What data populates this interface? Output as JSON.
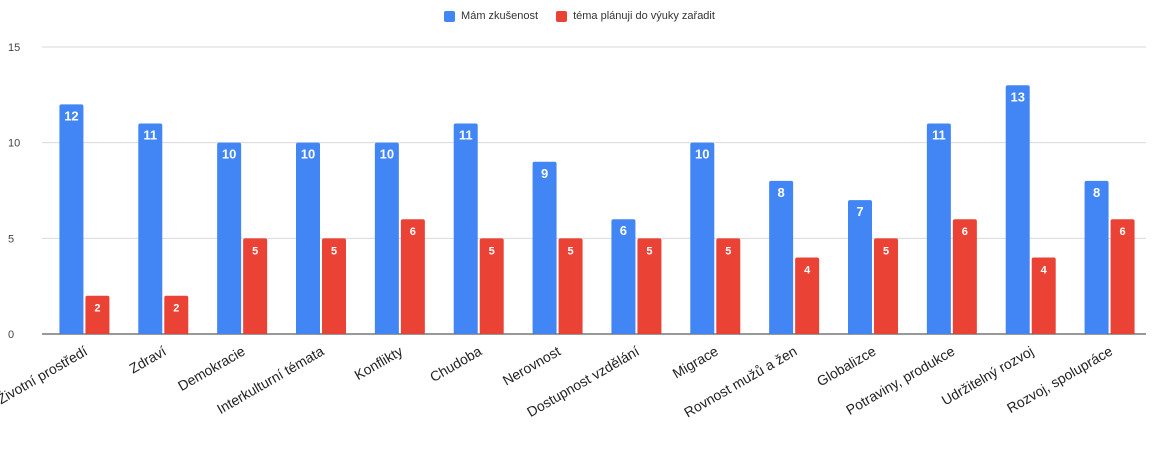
{
  "chart_data": {
    "type": "bar",
    "categories": [
      "Životní prostředí",
      "Zdraví",
      "Demokracie",
      "Interkulturní témata",
      "Konflikty",
      "Chudoba",
      "Nerovnost",
      "Dostupnost vzdělání",
      "Migrace",
      "Rovnost mužů a žen",
      "Globalizce",
      "Potraviny, produkce",
      "Udržitelný rozvoj",
      "Rozvoj, spolupráce"
    ],
    "series": [
      {
        "name": "Mám zkušenost",
        "color": "#4285f4",
        "values": [
          12,
          11,
          10,
          10,
          10,
          11,
          9,
          6,
          10,
          8,
          7,
          11,
          13,
          8
        ]
      },
      {
        "name": "téma plánuji do výuky zařadit",
        "color": "#ea4335",
        "values": [
          2,
          2,
          5,
          5,
          6,
          5,
          5,
          5,
          5,
          4,
          5,
          6,
          4,
          6
        ]
      }
    ],
    "ylim": [
      0,
      15
    ],
    "yticks": [
      0,
      5,
      10,
      15
    ],
    "grid": true,
    "legend": "top-center",
    "data_labels": true
  }
}
